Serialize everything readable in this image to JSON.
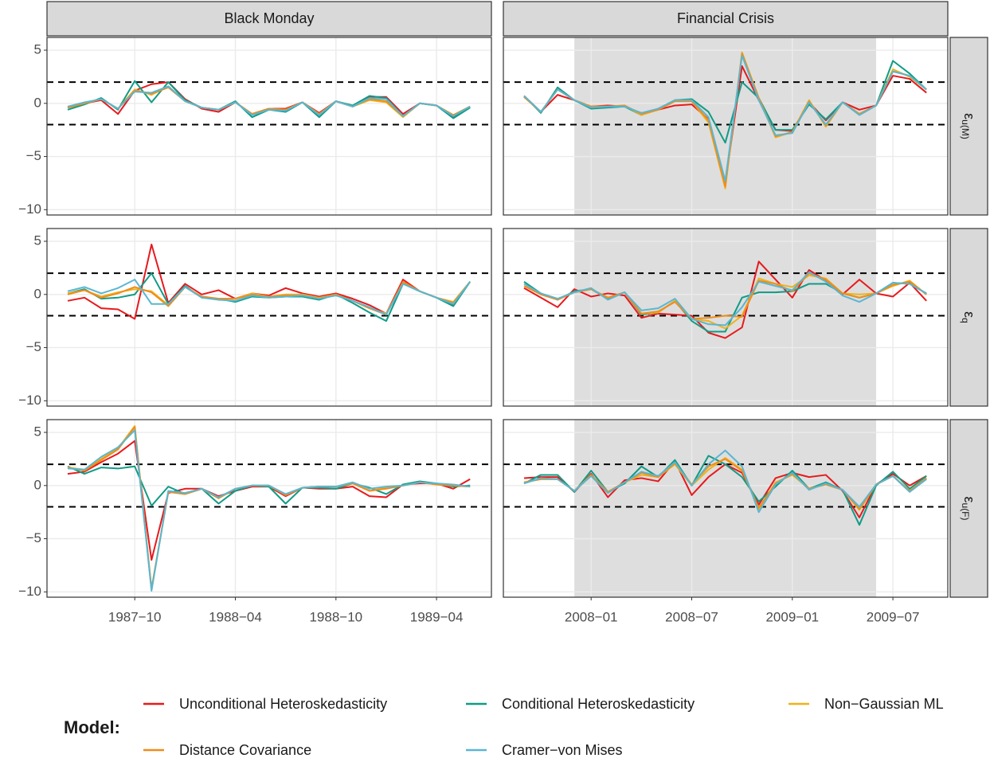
{
  "chart_data": {
    "type": "line",
    "legend_title": "Model:",
    "ylim": [
      -10.5,
      6.2
    ],
    "yticks": [
      {
        "value": -10,
        "label": "−10"
      },
      {
        "value": -5,
        "label": "−5"
      },
      0,
      5
    ],
    "hlines": [
      -2,
      2
    ],
    "grid": true,
    "series": [
      {
        "name": "Unconditional Heteroskedasticity",
        "color": "#e8191c"
      },
      {
        "name": "Conditional Heteroskedasticity",
        "color": "#109b86"
      },
      {
        "name": "Non−Gaussian ML",
        "color": "#efb21b"
      },
      {
        "name": "Distance Covariance",
        "color": "#f08c1a"
      },
      {
        "name": "Cramer−von Mises",
        "color": "#5ab6d2"
      }
    ],
    "columns": [
      {
        "title": "Black Monday",
        "x": [
          "1987-06",
          "1987-07",
          "1987-08",
          "1987-09",
          "1987-10",
          "1987-11",
          "1987-12",
          "1988-01",
          "1988-02",
          "1988-03",
          "1988-04",
          "1988-05",
          "1988-06",
          "1988-07",
          "1988-08",
          "1988-09",
          "1988-10",
          "1988-11",
          "1988-12",
          "1989-01",
          "1989-02",
          "1989-03",
          "1989-04",
          "1989-05",
          "1989-06"
        ],
        "xticks": [
          {
            "value": "1987-10",
            "label": "1987−10"
          },
          {
            "value": "1988-04",
            "label": "1988−04"
          },
          {
            "value": "1988-10",
            "label": "1988−10"
          },
          {
            "value": "1989-04",
            "label": "1989−04"
          }
        ]
      },
      {
        "title": "Financial Crisis",
        "x": [
          "2007-09",
          "2007-10",
          "2007-11",
          "2007-12",
          "2008-01",
          "2008-02",
          "2008-03",
          "2008-04",
          "2008-05",
          "2008-06",
          "2008-07",
          "2008-08",
          "2008-09",
          "2008-10",
          "2008-11",
          "2008-12",
          "2009-01",
          "2009-02",
          "2009-03",
          "2009-04",
          "2009-05",
          "2009-06",
          "2009-07",
          "2009-08",
          "2009-09"
        ],
        "xticks": [
          {
            "value": "2008-01",
            "label": "2008−01"
          },
          {
            "value": "2008-07",
            "label": "2008−07"
          },
          {
            "value": "2009-01",
            "label": "2009−01"
          },
          {
            "value": "2009-07",
            "label": "2009−07"
          }
        ],
        "shade": [
          "2007-12",
          "2009-06"
        ]
      }
    ],
    "rows": [
      {
        "symbol": "ε",
        "subscript": "u(M)",
        "panels": [
          [
            [
              -0.4,
              0,
              0.3,
              -1.0,
              1.2,
              1.8,
              2.0,
              0.4,
              -0.5,
              -0.8,
              0.1,
              -1.0,
              -0.5,
              -0.5,
              0.1,
              -0.9,
              0.2,
              -0.3,
              0.6,
              0.6,
              -1.0,
              0,
              -0.2,
              -1.3,
              -0.3
            ],
            [
              -0.6,
              -0.1,
              0.5,
              -0.6,
              2.1,
              0.1,
              2.0,
              0.3,
              -0.4,
              -0.6,
              0.2,
              -1.3,
              -0.6,
              -0.8,
              0.1,
              -1.3,
              0.2,
              -0.2,
              0.7,
              0.5,
              -1.2,
              0,
              -0.2,
              -1.4,
              -0.4
            ],
            [
              -0.4,
              0,
              0.4,
              -0.5,
              1.3,
              0.8,
              1.6,
              0.2,
              -0.4,
              -0.6,
              0.1,
              -1.0,
              -0.5,
              -0.6,
              0.1,
              -1.0,
              0.2,
              -0.3,
              0.3,
              0.1,
              -1.3,
              0,
              -0.2,
              -1.1,
              -0.3
            ],
            [
              -0.4,
              0,
              0.4,
              -0.5,
              1.2,
              0.9,
              1.5,
              0.2,
              -0.4,
              -0.6,
              0.1,
              -1.0,
              -0.5,
              -0.6,
              0.1,
              -1.0,
              0.2,
              -0.3,
              0.4,
              0.2,
              -1.2,
              0,
              -0.2,
              -1.1,
              -0.3
            ],
            [
              -0.3,
              0.1,
              0.4,
              -0.5,
              1.1,
              1.0,
              1.6,
              0.2,
              -0.4,
              -0.6,
              0.1,
              -1.1,
              -0.6,
              -0.7,
              0.1,
              -1.1,
              0.2,
              -0.3,
              0.5,
              0.4,
              -1.2,
              0,
              -0.2,
              -1.2,
              -0.3
            ]
          ],
          [
            [
              0.7,
              -0.8,
              0.8,
              0.3,
              -0.3,
              -0.2,
              -0.3,
              -1.0,
              -0.6,
              -0.2,
              -0.1,
              -1.5,
              -7.5,
              3.5,
              0.3,
              -2.5,
              -2.6,
              0.1,
              -1.6,
              0.1,
              -0.6,
              -0.2,
              2.6,
              2.3,
              1.0
            ],
            [
              0.7,
              -0.9,
              1.5,
              0.3,
              -0.5,
              -0.4,
              -0.3,
              -1.1,
              -0.5,
              0.3,
              0.4,
              -0.8,
              -3.7,
              2.0,
              0.5,
              -2.5,
              -2.5,
              -0.1,
              -1.5,
              0.1,
              -1.0,
              -0.2,
              4.0,
              2.8,
              1.3
            ],
            [
              0.6,
              -0.8,
              1.3,
              0.3,
              -0.3,
              -0.3,
              -0.2,
              -1.1,
              -0.6,
              0.2,
              0.2,
              -1.8,
              -8.0,
              4.8,
              0.5,
              -3.2,
              -2.7,
              0.3,
              -2.2,
              0.1,
              -1.1,
              -0.2,
              3.2,
              2.5,
              1.3
            ],
            [
              0.6,
              -0.8,
              1.3,
              0.3,
              -0.3,
              -0.3,
              -0.2,
              -1.0,
              -0.6,
              0.2,
              0.2,
              -1.6,
              -7.8,
              4.7,
              0.5,
              -3.1,
              -2.7,
              0.2,
              -2.1,
              0.1,
              -1.0,
              -0.2,
              3.0,
              2.6,
              1.3
            ],
            [
              0.7,
              -0.8,
              1.3,
              0.3,
              -0.4,
              -0.3,
              -0.3,
              -0.9,
              -0.5,
              0.3,
              0.3,
              -1.3,
              -7.3,
              4.5,
              0.3,
              -3.0,
              -2.8,
              0.1,
              -2.0,
              0.1,
              -1.1,
              -0.2,
              3.0,
              2.6,
              1.3
            ]
          ]
        ]
      },
      {
        "symbol": "ε",
        "subscript": "q",
        "panels": [
          [
            [
              -0.6,
              -0.3,
              -1.3,
              -1.4,
              -2.3,
              4.7,
              -0.8,
              1.0,
              0,
              0.4,
              -0.4,
              0.1,
              -0.1,
              0.6,
              0.1,
              -0.2,
              0.1,
              -0.4,
              -1.0,
              -1.8,
              1.4,
              0.3,
              -0.3,
              -1.0,
              1.2
            ],
            [
              0.1,
              0.5,
              -0.4,
              -0.3,
              0,
              2.0,
              -0.9,
              0.8,
              -0.3,
              -0.4,
              -0.7,
              -0.2,
              -0.3,
              -0.2,
              -0.2,
              -0.5,
              0,
              -0.8,
              -1.7,
              -2.5,
              1.0,
              0.3,
              -0.3,
              -1.1,
              1.2
            ],
            [
              0.1,
              0.4,
              -0.2,
              0.2,
              0.5,
              0.3,
              -1.0,
              0.7,
              -0.2,
              -0.4,
              -0.4,
              0.1,
              -0.2,
              0,
              0,
              -0.3,
              0,
              -0.6,
              -1.3,
              -1.8,
              1.1,
              0.3,
              -0.3,
              -0.7,
              1.2
            ],
            [
              0,
              0.4,
              -0.3,
              0.1,
              0.7,
              0.2,
              -1.1,
              0.7,
              -0.2,
              -0.4,
              -0.4,
              0,
              -0.2,
              -0.1,
              -0.1,
              -0.4,
              0,
              -0.6,
              -1.3,
              -1.9,
              1.2,
              0.3,
              -0.3,
              -0.8,
              1.2
            ],
            [
              0.3,
              0.7,
              0.1,
              0.6,
              1.4,
              -0.9,
              -0.9,
              0.7,
              -0.3,
              -0.5,
              -0.6,
              -0.1,
              -0.3,
              -0.2,
              -0.1,
              -0.4,
              -0.1,
              -0.6,
              -1.2,
              -1.9,
              1.0,
              0.3,
              -0.3,
              -0.9,
              1.2
            ]
          ],
          [
            [
              0.6,
              -0.3,
              -1.2,
              0.5,
              -0.2,
              0.1,
              -0.1,
              -2.2,
              -1.8,
              -1.9,
              -2.0,
              -3.6,
              -4.1,
              -3.1,
              3.1,
              1.4,
              -0.3,
              2.3,
              1.3,
              0.0,
              1.4,
              0.1,
              -0.2,
              1.1,
              -0.6
            ],
            [
              1.2,
              0.1,
              -0.5,
              0.3,
              0.5,
              -0.4,
              0.2,
              -1.9,
              -1.7,
              -0.6,
              -2.5,
              -3.5,
              -3.5,
              -0.3,
              0.2,
              0.2,
              0.3,
              1.0,
              1.0,
              0.1,
              -0.3,
              0.1,
              1.1,
              1.0,
              0.1
            ],
            [
              0.8,
              0,
              -0.4,
              0.2,
              0.5,
              -0.3,
              0.2,
              -1.8,
              -1.7,
              -0.6,
              -2.3,
              -2.5,
              -3.2,
              -2.0,
              1.5,
              1.0,
              0.7,
              1.8,
              1.5,
              0.1,
              0,
              0.1,
              0.8,
              1.3,
              0
            ],
            [
              0.8,
              0,
              -0.5,
              0.2,
              0.5,
              -0.3,
              0.2,
              -1.8,
              -1.6,
              -0.7,
              -2.3,
              -2.2,
              -2.0,
              -2.1,
              1.3,
              1.0,
              0.3,
              2.0,
              1.4,
              0.1,
              -0.3,
              0.1,
              0.9,
              1.2,
              0
            ],
            [
              1.0,
              0.1,
              -0.4,
              0.2,
              0.6,
              -0.5,
              0.2,
              -1.5,
              -1.3,
              -0.4,
              -2.3,
              -2.8,
              -2.9,
              -1.2,
              1.2,
              0.8,
              0.4,
              2.1,
              1.2,
              -0.1,
              -0.7,
              0.1,
              1.1,
              1.0,
              0.1
            ]
          ]
        ]
      },
      {
        "symbol": "ε",
        "subscript": "u(F)",
        "panels": [
          [
            [
              1.1,
              1.3,
              2.2,
              3.0,
              4.2,
              -7.0,
              -0.7,
              -0.3,
              -0.3,
              -1.0,
              -0.5,
              -0.1,
              -0.1,
              -1.0,
              -0.2,
              -0.3,
              -0.3,
              -0.1,
              -1.0,
              -1.1,
              0.1,
              0.2,
              0.2,
              -0.3,
              0.6
            ],
            [
              1.8,
              1.1,
              1.7,
              1.6,
              1.8,
              -1.9,
              -0.1,
              -0.8,
              -0.3,
              -1.7,
              -0.5,
              0,
              -0.1,
              -1.7,
              -0.2,
              -0.2,
              -0.3,
              0.2,
              -0.2,
              -0.8,
              0.1,
              0.4,
              0.2,
              -0.1,
              0
            ],
            [
              1.7,
              1.5,
              2.5,
              3.5,
              5.6,
              -9.8,
              -0.6,
              -0.8,
              -0.3,
              -1.2,
              -0.3,
              0,
              0,
              -0.9,
              -0.2,
              -0.1,
              -0.1,
              0.2,
              -0.5,
              -0.2,
              0,
              0.3,
              0.1,
              0,
              -0.1
            ],
            [
              1.7,
              1.4,
              2.4,
              3.4,
              5.5,
              -9.7,
              -0.6,
              -0.8,
              -0.3,
              -1.2,
              -0.3,
              0,
              0,
              -0.9,
              -0.2,
              -0.1,
              -0.1,
              0.2,
              -0.5,
              -0.3,
              0,
              0.3,
              0.1,
              0,
              -0.1
            ],
            [
              1.6,
              1.5,
              2.7,
              3.6,
              5.2,
              -9.9,
              -0.5,
              -0.7,
              -0.3,
              -1.1,
              -0.3,
              0,
              0,
              -0.8,
              -0.2,
              -0.1,
              -0.1,
              0.3,
              -0.3,
              -0.1,
              0,
              0.3,
              0.2,
              0.1,
              -0.1
            ]
          ],
          [
            [
              0.7,
              0.8,
              0.8,
              -0.6,
              1.1,
              -1.1,
              0.5,
              0.7,
              0.4,
              2.3,
              -0.9,
              0.8,
              2.0,
              1.2,
              -1.8,
              0.7,
              1.2,
              0.8,
              1.0,
              -0.5,
              -3.0,
              0.1,
              1.1,
              0,
              0.9
            ],
            [
              0.2,
              1.0,
              1.0,
              -0.6,
              1.4,
              -0.6,
              0.2,
              1.8,
              0.8,
              2.4,
              0,
              2.8,
              2.0,
              0.8,
              -1.5,
              -0.1,
              1.4,
              -0.3,
              0.3,
              -0.4,
              -3.7,
              0,
              1.3,
              -0.3,
              0.9
            ],
            [
              0.3,
              0.6,
              0.6,
              -0.5,
              1.0,
              -0.6,
              0.3,
              1.0,
              0.8,
              2.0,
              0,
              1.5,
              2.6,
              1.5,
              -2.2,
              0.3,
              1.0,
              -0.3,
              0.1,
              -0.4,
              -2.3,
              0.1,
              0.9,
              -0.5,
              0.7
            ],
            [
              0.3,
              0.6,
              0.6,
              -0.5,
              1.0,
              -0.6,
              0.3,
              1.2,
              0.8,
              2.1,
              0.1,
              1.8,
              2.5,
              1.4,
              -2.1,
              0.2,
              1.1,
              -0.3,
              0.1,
              -0.4,
              -2.2,
              0.1,
              0.9,
              -0.5,
              0.7
            ],
            [
              0.2,
              0.7,
              0.6,
              -0.5,
              0.9,
              -0.7,
              0.3,
              1.3,
              0.9,
              2.2,
              0,
              2.0,
              3.3,
              1.8,
              -2.5,
              0.1,
              1.2,
              -0.4,
              0.2,
              -0.4,
              -2.0,
              0.1,
              0.9,
              -0.6,
              0.6
            ]
          ]
        ]
      }
    ]
  }
}
